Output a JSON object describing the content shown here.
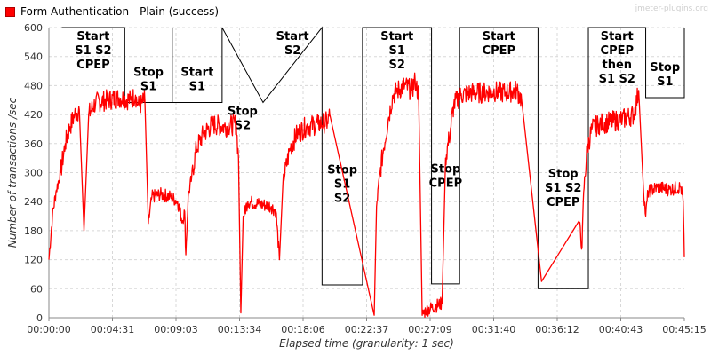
{
  "legend": {
    "label": "Form Authentication - Plain (success)",
    "color": "#ff0000"
  },
  "watermark": "jmeter-plugins.org",
  "chart_data": {
    "type": "line",
    "xlabel": "Elapsed time (granularity: 1 sec)",
    "ylabel": "Number of transactions /sec",
    "xlim_seconds": [
      0,
      2715
    ],
    "ylim": [
      0,
      600
    ],
    "x_ticks": [
      "00:00:00",
      "00:04:31",
      "00:09:03",
      "00:13:34",
      "00:18:06",
      "00:22:37",
      "00:27:09",
      "00:31:40",
      "00:36:12",
      "00:40:43",
      "00:45:15"
    ],
    "y_ticks": [
      0,
      60,
      120,
      180,
      240,
      300,
      360,
      420,
      480,
      540,
      600
    ],
    "grid": true,
    "series": [
      {
        "name": "Form Authentication - Plain (success)",
        "color": "#ff0000",
        "points": [
          [
            0,
            120
          ],
          [
            15,
            210
          ],
          [
            30,
            260
          ],
          [
            50,
            300
          ],
          [
            70,
            360
          ],
          [
            90,
            395
          ],
          [
            110,
            420
          ],
          [
            130,
            430
          ],
          [
            150,
            180
          ],
          [
            170,
            420
          ],
          [
            200,
            445
          ],
          [
            250,
            450
          ],
          [
            300,
            455
          ],
          [
            350,
            450
          ],
          [
            370,
            460
          ],
          [
            380,
            440
          ],
          [
            390,
            440
          ],
          [
            400,
            445
          ],
          [
            410,
            450
          ],
          [
            425,
            195
          ],
          [
            440,
            250
          ],
          [
            480,
            255
          ],
          [
            520,
            250
          ],
          [
            550,
            240
          ],
          [
            570,
            200
          ],
          [
            580,
            220
          ],
          [
            585,
            130
          ],
          [
            595,
            250
          ],
          [
            610,
            290
          ],
          [
            630,
            350
          ],
          [
            660,
            380
          ],
          [
            700,
            400
          ],
          [
            750,
            395
          ],
          [
            800,
            400
          ],
          [
            810,
            330
          ],
          [
            820,
            10
          ],
          [
            830,
            210
          ],
          [
            850,
            240
          ],
          [
            900,
            235
          ],
          [
            950,
            230
          ],
          [
            970,
            220
          ],
          [
            985,
            120
          ],
          [
            1000,
            280
          ],
          [
            1030,
            350
          ],
          [
            1060,
            380
          ],
          [
            1100,
            395
          ],
          [
            1150,
            400
          ],
          [
            1190,
            405
          ],
          [
            1200,
            420
          ],
          [
            1390,
            5
          ],
          [
            1400,
            230
          ],
          [
            1415,
            300
          ],
          [
            1430,
            350
          ],
          [
            1450,
            410
          ],
          [
            1470,
            460
          ],
          [
            1490,
            470
          ],
          [
            1520,
            480
          ],
          [
            1550,
            470
          ],
          [
            1565,
            490
          ],
          [
            1570,
            480
          ],
          [
            1580,
            460
          ],
          [
            1595,
            5
          ],
          [
            1610,
            15
          ],
          [
            1680,
            30
          ],
          [
            1695,
            330
          ],
          [
            1710,
            370
          ],
          [
            1730,
            440
          ],
          [
            1760,
            460
          ],
          [
            1800,
            465
          ],
          [
            1850,
            465
          ],
          [
            1900,
            468
          ],
          [
            1950,
            465
          ],
          [
            2000,
            470
          ],
          [
            2020,
            450
          ],
          [
            2105,
            75
          ],
          [
            2265,
            200
          ],
          [
            2278,
            145
          ],
          [
            2285,
            260
          ],
          [
            2300,
            350
          ],
          [
            2320,
            390
          ],
          [
            2350,
            400
          ],
          [
            2400,
            405
          ],
          [
            2450,
            410
          ],
          [
            2500,
            420
          ],
          [
            2520,
            470
          ],
          [
            2540,
            270
          ],
          [
            2550,
            210
          ],
          [
            2560,
            260
          ],
          [
            2600,
            270
          ],
          [
            2650,
            265
          ],
          [
            2700,
            270
          ],
          [
            2710,
            240
          ],
          [
            2715,
            125
          ]
        ]
      }
    ],
    "annotations": [
      {
        "lines": [
          "Start",
          "S1 S2",
          "CPEP"
        ],
        "x_range": [
          55,
          324
        ],
        "top": 600,
        "bottom": 600
      },
      {
        "lines": [
          "Stop",
          "S1"
        ],
        "x_range": [
          324,
          527
        ],
        "top": 600,
        "bottom": 445
      },
      {
        "lines": [
          "Start",
          "S1"
        ],
        "x_range": [
          527,
          740
        ],
        "top": 600,
        "bottom": 445
      },
      {
        "lines": [
          "Stop",
          "S2"
        ],
        "x_range": [
          740,
          915
        ],
        "top": 445,
        "bottom": 445
      },
      {
        "lines": [
          "Start",
          "S2"
        ],
        "x_range": [
          915,
          1167
        ],
        "top": 600,
        "bottom": 600
      },
      {
        "lines": [
          "Stop",
          "S1",
          "S2"
        ],
        "x_range": [
          1167,
          1340
        ],
        "top": 600,
        "bottom": 68
      },
      {
        "lines": [
          "Start",
          "S1",
          "S2"
        ],
        "x_range": [
          1340,
          1635
        ],
        "top": 600,
        "bottom": 600
      },
      {
        "lines": [
          "Stop",
          "CPEP"
        ],
        "x_range": [
          1635,
          1755
        ],
        "top": 600,
        "bottom": 70
      },
      {
        "lines": [
          "Start",
          "CPEP"
        ],
        "x_range": [
          1755,
          2090
        ],
        "top": 600,
        "bottom": 600
      },
      {
        "lines": [
          "Stop",
          "S1 S2",
          "CPEP"
        ],
        "x_range": [
          2090,
          2305
        ],
        "top": 600,
        "bottom": 60
      },
      {
        "lines": [
          "Start",
          "CPEP",
          "then",
          "S1 S2"
        ],
        "x_range": [
          2305,
          2550
        ],
        "top": 600,
        "bottom": 600
      },
      {
        "lines": [
          "Stop",
          "S1"
        ],
        "x_range": [
          2550,
          2715
        ],
        "top": 600,
        "bottom": 455
      }
    ]
  }
}
